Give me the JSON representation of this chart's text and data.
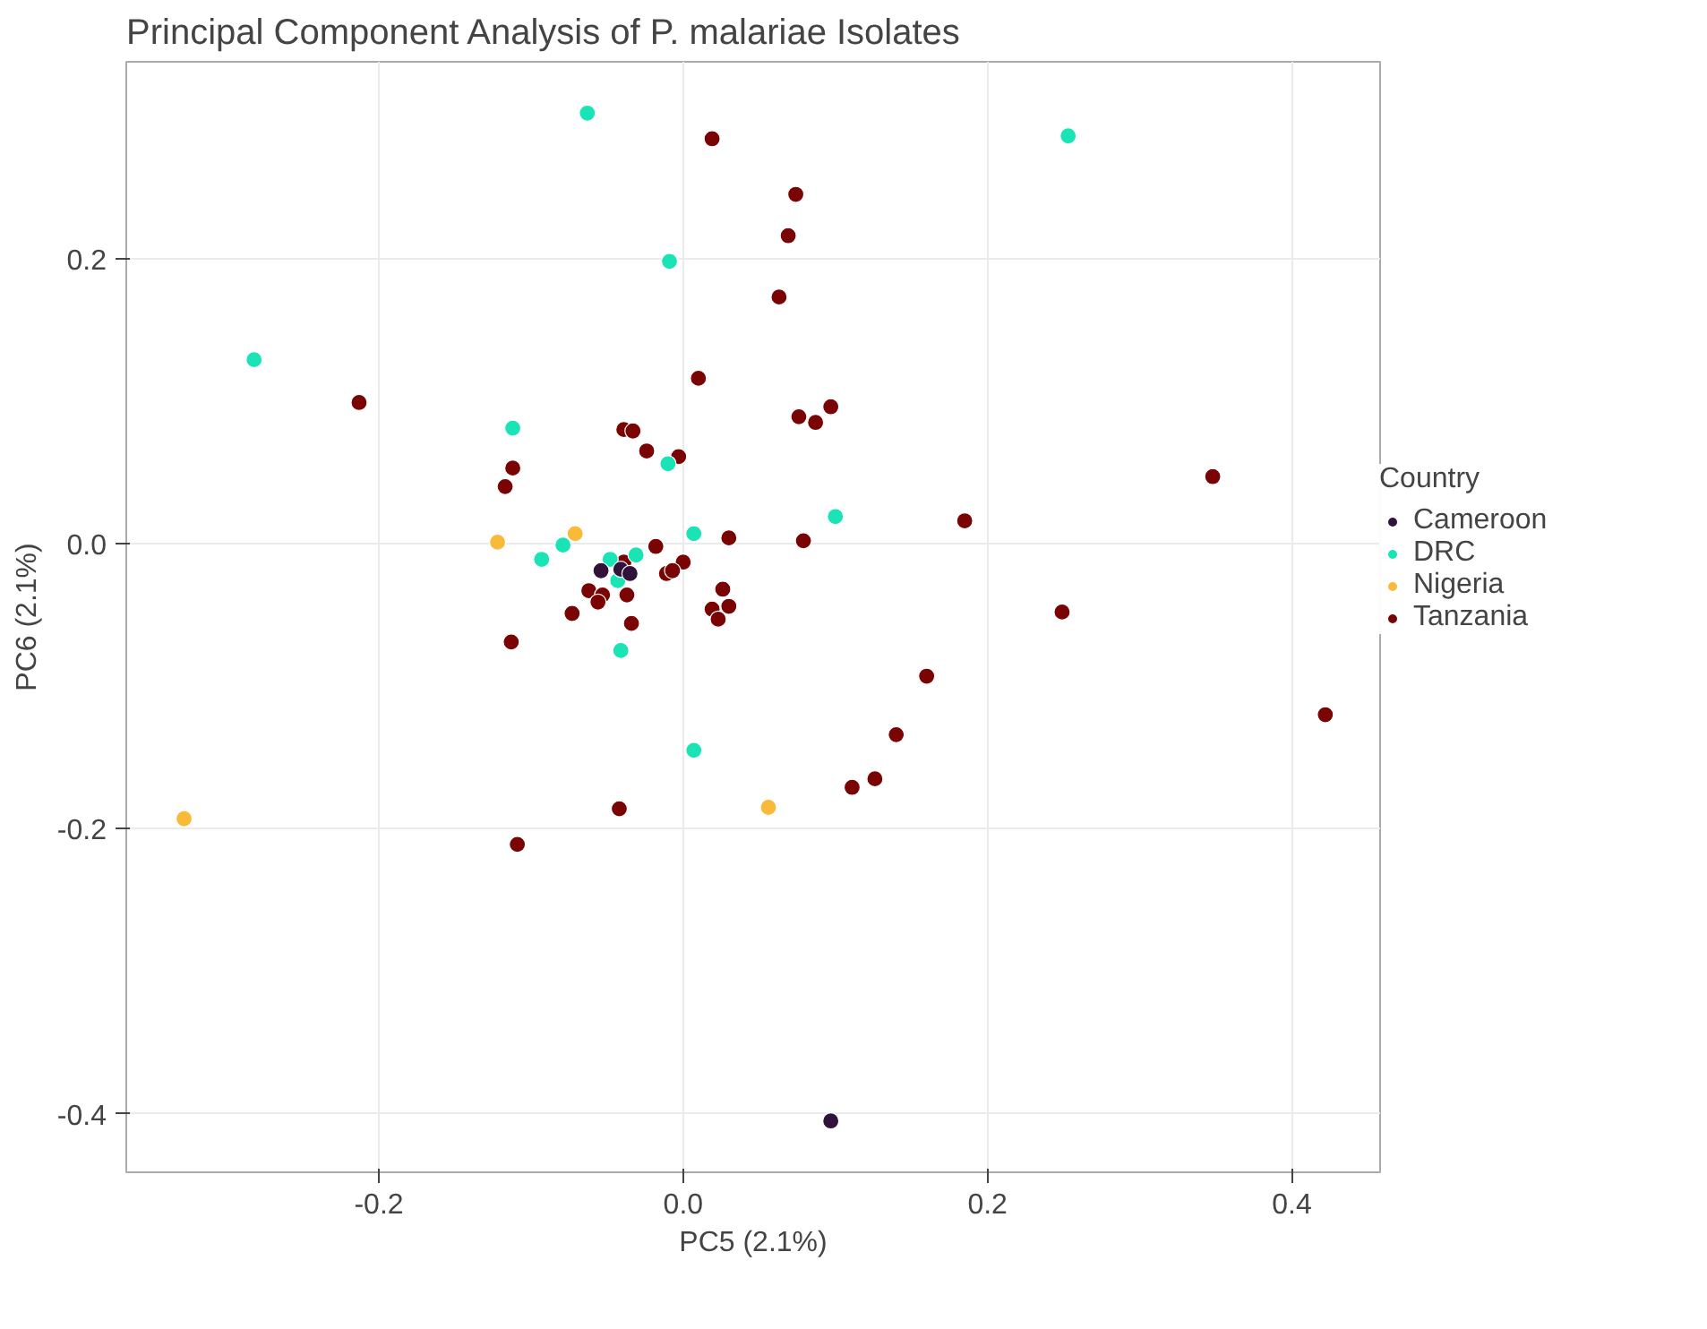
{
  "chart_data": {
    "type": "scatter",
    "title": "Principal Component Analysis of P. malariae Isolates",
    "xlabel": "PC5 (2.1%)",
    "ylabel": "PC6 (2.1%)",
    "legend_title": "Country",
    "legend": "right",
    "grid": true,
    "marker": "circle",
    "xlim": [
      -0.366,
      0.458
    ],
    "ylim": [
      -0.441,
      0.338
    ],
    "xticks": [
      -0.2,
      {
        "value": 0,
        "label": "0.0"
      },
      0.2,
      0.4
    ],
    "yticks": [
      -0.4,
      -0.2,
      {
        "value": 0,
        "label": "0.0"
      },
      0.2
    ],
    "series": [
      {
        "name": "Cameroon",
        "color": "#30123b",
        "x": [
          -0.054,
          -0.041,
          -0.035,
          0.097
        ],
        "values": [
          -0.019,
          -0.018,
          -0.021,
          -0.405
        ]
      },
      {
        "name": "DRC",
        "color": "#1ae4b6",
        "x": [
          -0.063,
          0.253,
          -0.282,
          -0.009,
          -0.112,
          -0.01,
          0.1,
          0.007,
          -0.093,
          -0.079,
          -0.048,
          -0.031,
          -0.043,
          -0.041,
          0.007
        ],
        "values": [
          0.302,
          0.286,
          0.129,
          0.198,
          0.081,
          0.056,
          0.019,
          0.007,
          -0.011,
          -0.001,
          -0.011,
          -0.008,
          -0.026,
          -0.075,
          -0.145
        ]
      },
      {
        "name": "Nigeria",
        "color": "#fabA39",
        "x": [
          -0.328,
          -0.122,
          -0.071,
          0.056
        ],
        "values": [
          -0.193,
          0.001,
          0.007,
          -0.185
        ]
      },
      {
        "name": "Tanzania",
        "color": "#7a0403",
        "x": [
          0.019,
          0.074,
          0.069,
          0.063,
          0.01,
          -0.213,
          0.076,
          0.097,
          0.087,
          -0.039,
          -0.033,
          -0.024,
          -0.003,
          -0.112,
          -0.117,
          0.185,
          0.348,
          0.03,
          0.079,
          -0.018,
          -0.039,
          0.0,
          -0.011,
          -0.007,
          -0.062,
          -0.053,
          -0.056,
          -0.037,
          0.026,
          0.03,
          0.019,
          0.023,
          -0.073,
          -0.034,
          -0.113,
          0.249,
          0.16,
          0.422,
          0.14,
          0.126,
          0.111,
          -0.042,
          -0.109
        ],
        "values": [
          0.284,
          0.245,
          0.216,
          0.173,
          0.116,
          0.099,
          0.089,
          0.096,
          0.085,
          0.08,
          0.079,
          0.065,
          0.061,
          0.053,
          0.04,
          0.016,
          0.047,
          0.004,
          0.002,
          -0.002,
          -0.013,
          -0.013,
          -0.021,
          -0.019,
          -0.033,
          -0.036,
          -0.041,
          -0.036,
          -0.032,
          -0.044,
          -0.046,
          -0.053,
          -0.049,
          -0.056,
          -0.069,
          -0.048,
          -0.093,
          -0.12,
          -0.134,
          -0.165,
          -0.171,
          -0.186,
          -0.211
        ]
      }
    ]
  }
}
